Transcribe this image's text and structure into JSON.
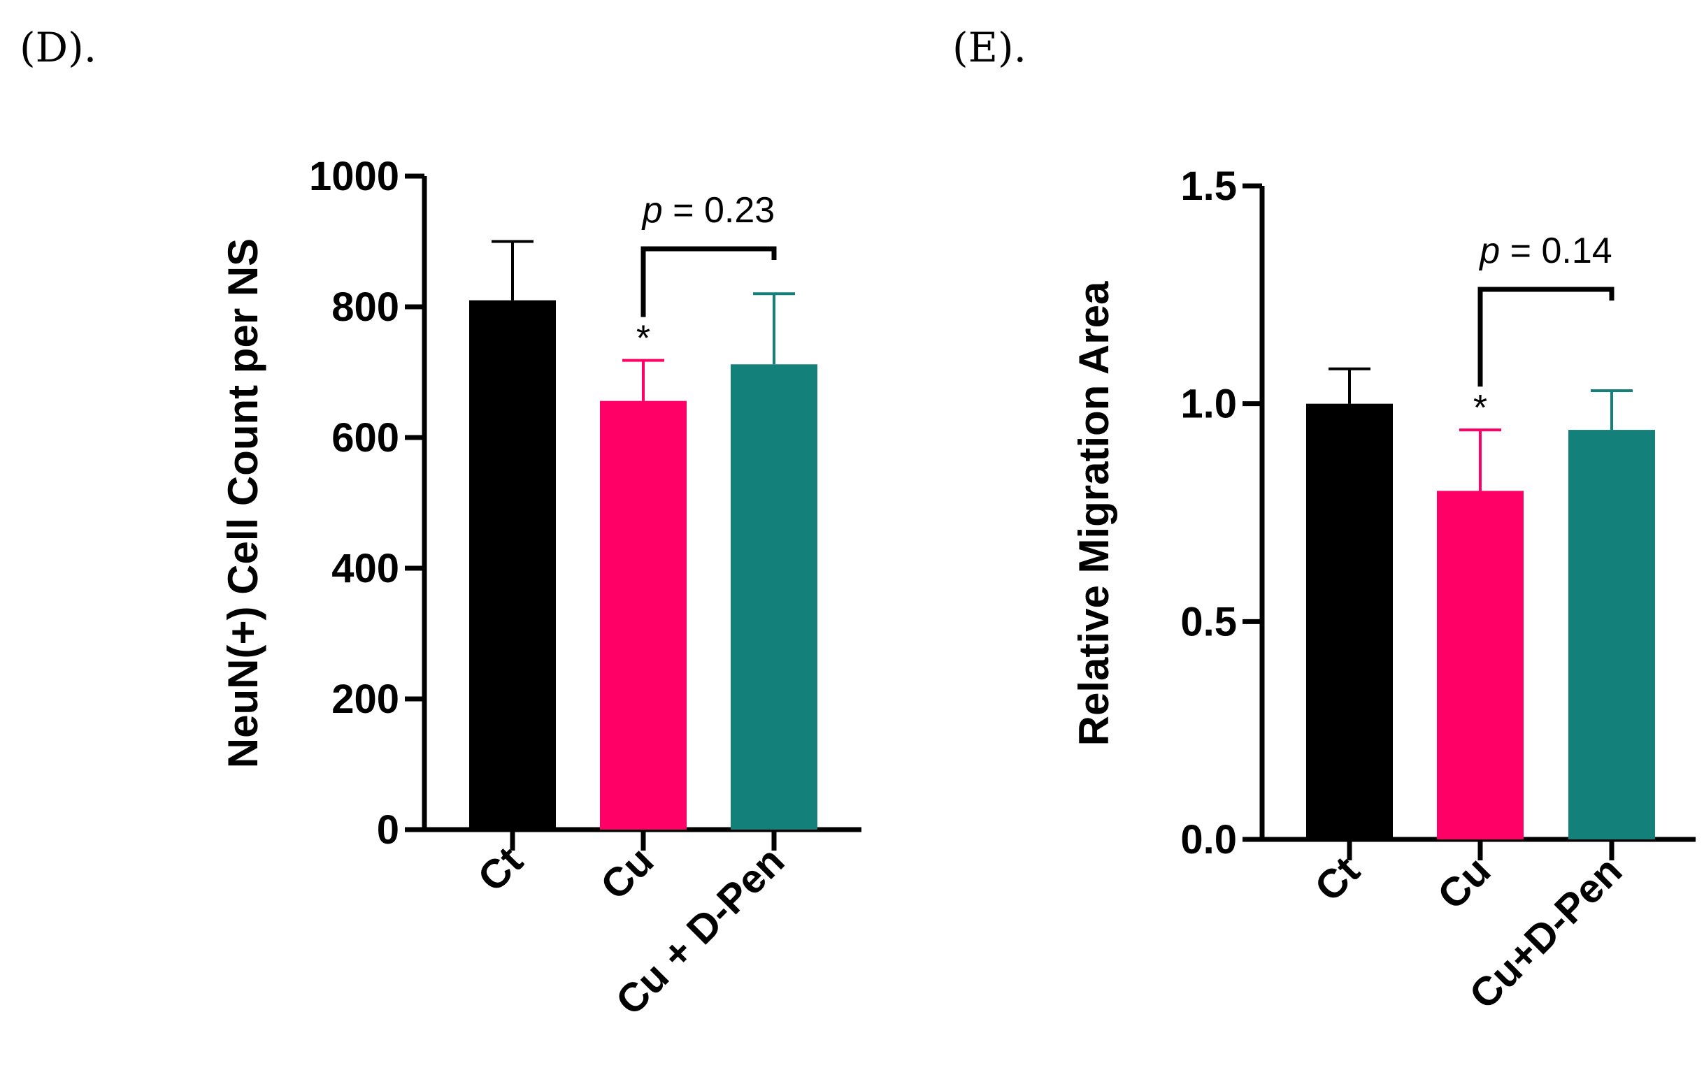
{
  "chart_data": [
    {
      "type": "bar",
      "panel_label": "(D).",
      "title": "",
      "xlabel": "",
      "ylabel": "NeuN(+) Cell Count per NS",
      "ylim": [
        0,
        1000
      ],
      "yticks": [
        "0",
        "200",
        "400",
        "600",
        "800",
        "1000"
      ],
      "ytick_values": [
        0,
        200,
        400,
        600,
        800,
        1000
      ],
      "categories": [
        "Ct",
        "Cu",
        "Cu + D-Pen"
      ],
      "values": [
        810,
        656,
        712
      ],
      "errors": [
        90,
        62,
        108
      ],
      "colors": [
        "#000000",
        "#ff0066",
        "#138079"
      ],
      "significance": [
        null,
        "*",
        null
      ],
      "comparison": {
        "from": 1,
        "to": 2,
        "p_italic": "p",
        "p_text": " = 0.23"
      }
    },
    {
      "type": "bar",
      "panel_label": "(E).",
      "title": "",
      "xlabel": "",
      "ylabel": "Relative Migration Area",
      "ylim": [
        0,
        1.5
      ],
      "yticks": [
        "0.0",
        "0.5",
        "1.0",
        "1.5"
      ],
      "ytick_values": [
        0,
        0.5,
        1.0,
        1.5
      ],
      "categories": [
        "Ct",
        "Cu",
        "Cu+D-Pen"
      ],
      "values": [
        1.0,
        0.8,
        0.94
      ],
      "errors": [
        0.08,
        0.14,
        0.09
      ],
      "colors": [
        "#000000",
        "#ff0066",
        "#138079"
      ],
      "significance": [
        null,
        "*",
        null
      ],
      "comparison": {
        "from": 1,
        "to": 2,
        "p_italic": "p",
        "p_text": " = 0.14"
      }
    }
  ]
}
